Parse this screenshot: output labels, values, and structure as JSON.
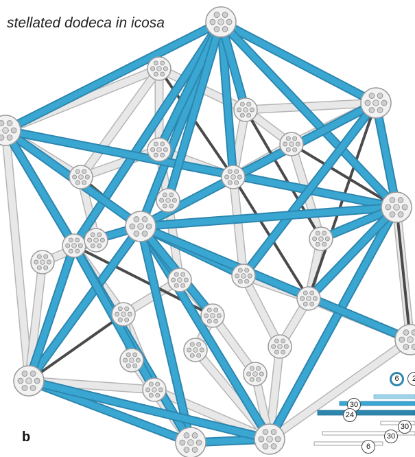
{
  "figure": {
    "title": "stellated dodeca in icosa",
    "panel_letter": "b"
  },
  "colors": {
    "blue": "#3aa7d3",
    "blue_dark": "#2d86ae",
    "white_strut": "#e8e8e8",
    "white_strut_edge": "#b5b5b5",
    "dark_strut": "#4a4a4a",
    "node_fill": "#f2f2f2",
    "node_stroke": "#9a9a9a"
  },
  "legend": {
    "labels": [
      "6",
      "2",
      "30",
      "24",
      "30",
      "30",
      "6"
    ]
  }
}
